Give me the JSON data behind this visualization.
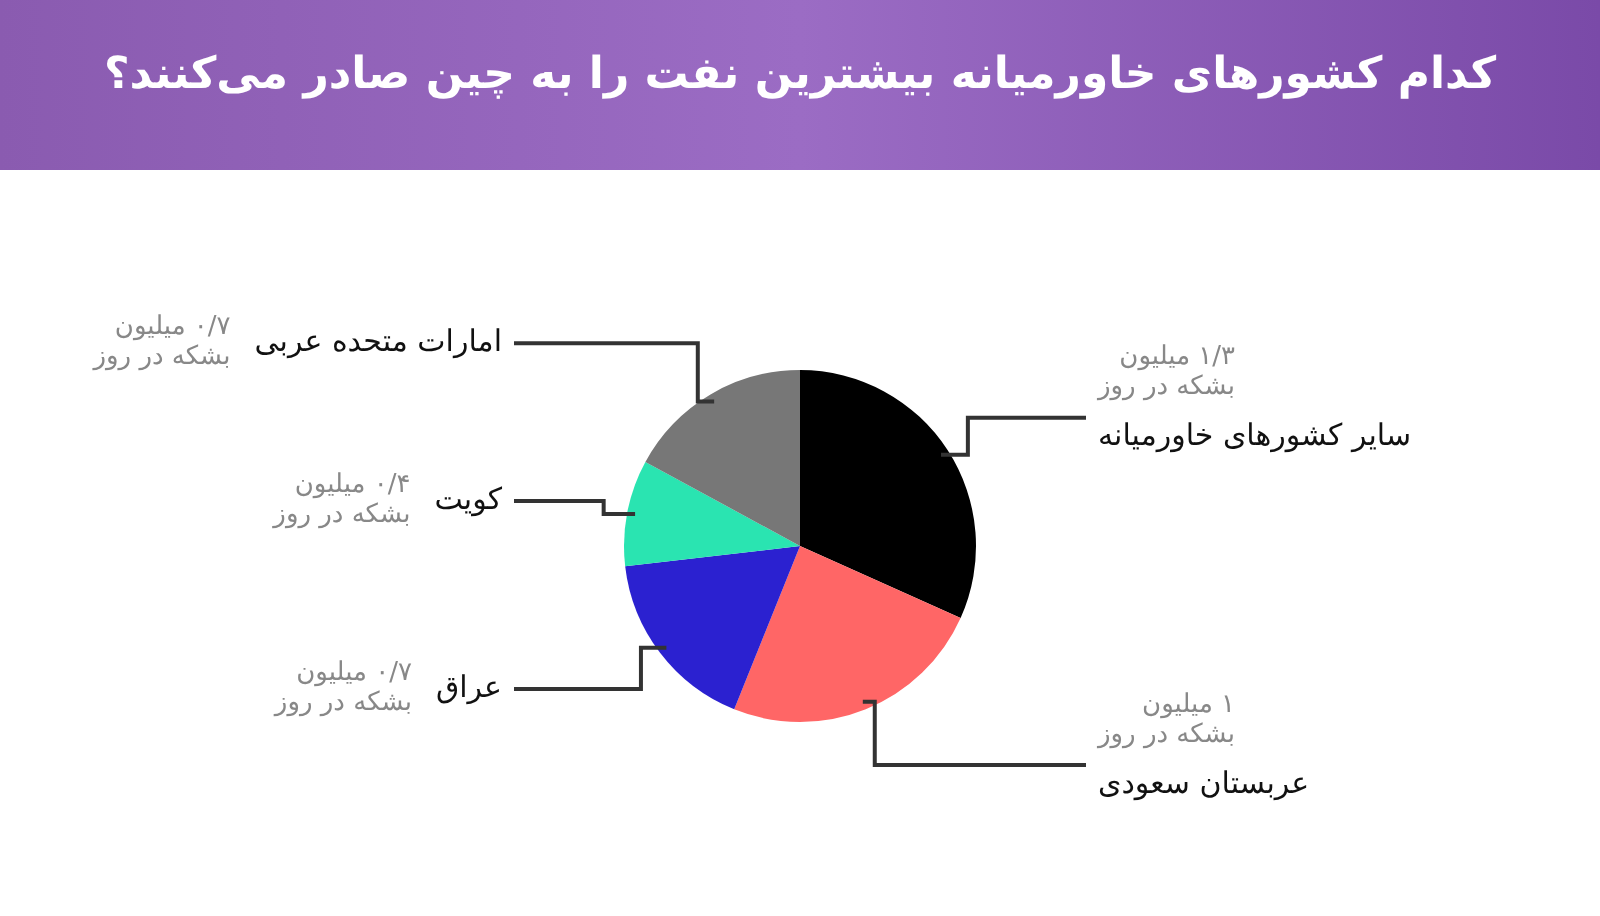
{
  "chart_data": {
    "type": "pie",
    "title": "کدام کشورهای خاورمیانه بیشترین نفت را به چین صادر می‌کنند؟",
    "categories": [
      "سایر کشورهای خاورمیانه",
      "عربستان سعودی",
      "عراق",
      "کویت",
      "امارات متحده عربی"
    ],
    "values": [
      1.3,
      1,
      0.7,
      0.4,
      0.7
    ],
    "value_labels": [
      "۱/۳ میلیون\nبشکه در روز",
      "۱ میلیون\nبشکه در روز",
      "۰/۷ میلیون\nبشکه در روز",
      "۰/۴ میلیون\nبشکه در روز",
      "۰/۷ میلیون\nبشکه در روز"
    ],
    "colors": [
      "#000000",
      "#ff6666",
      "#2b21d0",
      "#2ae4b1",
      "#777777"
    ],
    "legend": false
  }
}
